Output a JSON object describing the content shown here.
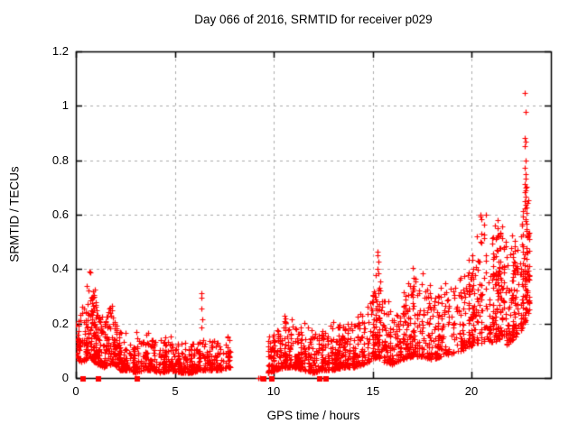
{
  "title": "Day 066 of 2016, SRMTID for receiver p029",
  "x_axis": {
    "label": "GPS time / hours",
    "min": 0,
    "max": 24,
    "ticks": [
      {
        "v": 0,
        "label": "0"
      },
      {
        "v": 5,
        "label": "5"
      },
      {
        "v": 10,
        "label": "10"
      },
      {
        "v": 15,
        "label": "15"
      },
      {
        "v": 20,
        "label": "20"
      }
    ]
  },
  "y_axis": {
    "label": "SRMTID / TECUs",
    "min": 0,
    "max": 1.2,
    "ticks": [
      {
        "v": 0,
        "label": "0"
      },
      {
        "v": 0.2,
        "label": "0.2"
      },
      {
        "v": 0.4,
        "label": "0.4"
      },
      {
        "v": 0.6,
        "label": "0.6"
      },
      {
        "v": 0.8,
        "label": "0.8"
      },
      {
        "v": 1,
        "label": "1"
      },
      {
        "v": 1.2,
        "label": "1.2"
      }
    ]
  },
  "colors": {
    "points": "#ff0000",
    "grid": "#ababab",
    "axis": "#000000",
    "background": "#ffffff",
    "text": "#000000"
  },
  "chart_data": {
    "type": "scatter",
    "marker": "plus",
    "series_name": "SRMTID",
    "series_color": "#ff0000",
    "title": "Day 066 of 2016, SRMTID for receiver p029",
    "xlabel": "GPS time / hours",
    "ylabel": "SRMTID / TECUs",
    "xlim": [
      0,
      24
    ],
    "ylim": [
      0,
      1.2
    ],
    "grid": true,
    "grid_style": "dashed",
    "legend": false,
    "time_coverage_hours": [
      [
        0,
        7.8
      ],
      [
        9.7,
        23.0
      ]
    ],
    "max_value": 1.05,
    "max_value_time": 22.7,
    "envelope": [
      [
        0.0,
        0.08,
        0.2
      ],
      [
        0.3,
        0.05,
        0.24
      ],
      [
        0.55,
        0.07,
        0.32
      ],
      [
        0.7,
        0.08,
        0.39
      ],
      [
        0.9,
        0.06,
        0.33
      ],
      [
        1.1,
        0.05,
        0.24
      ],
      [
        1.4,
        0.04,
        0.2
      ],
      [
        1.7,
        0.05,
        0.29
      ],
      [
        1.95,
        0.05,
        0.26
      ],
      [
        2.2,
        0.03,
        0.19
      ],
      [
        2.6,
        0.03,
        0.16
      ],
      [
        3.0,
        0.02,
        0.15
      ],
      [
        3.4,
        0.03,
        0.18
      ],
      [
        3.8,
        0.03,
        0.14
      ],
      [
        4.3,
        0.02,
        0.13
      ],
      [
        4.8,
        0.03,
        0.15
      ],
      [
        5.3,
        0.02,
        0.12
      ],
      [
        5.8,
        0.02,
        0.12
      ],
      [
        6.3,
        0.03,
        0.14
      ],
      [
        6.8,
        0.03,
        0.13
      ],
      [
        7.3,
        0.03,
        0.15
      ],
      [
        7.8,
        0.04,
        0.18
      ],
      [
        9.7,
        0.02,
        0.14
      ],
      [
        10.1,
        0.03,
        0.17
      ],
      [
        10.5,
        0.04,
        0.22
      ],
      [
        11.0,
        0.04,
        0.2
      ],
      [
        11.5,
        0.03,
        0.19
      ],
      [
        12.0,
        0.02,
        0.15
      ],
      [
        12.5,
        0.03,
        0.16
      ],
      [
        13.0,
        0.03,
        0.19
      ],
      [
        13.5,
        0.04,
        0.18
      ],
      [
        14.0,
        0.04,
        0.2
      ],
      [
        14.5,
        0.05,
        0.24
      ],
      [
        15.0,
        0.07,
        0.3
      ],
      [
        15.25,
        0.08,
        0.43
      ],
      [
        15.5,
        0.06,
        0.28
      ],
      [
        16.0,
        0.05,
        0.24
      ],
      [
        16.5,
        0.07,
        0.28
      ],
      [
        17.0,
        0.08,
        0.37
      ],
      [
        17.4,
        0.08,
        0.38
      ],
      [
        18.0,
        0.07,
        0.3
      ],
      [
        18.5,
        0.08,
        0.32
      ],
      [
        19.0,
        0.09,
        0.35
      ],
      [
        19.5,
        0.1,
        0.36
      ],
      [
        20.0,
        0.12,
        0.42
      ],
      [
        20.5,
        0.13,
        0.58
      ],
      [
        21.0,
        0.13,
        0.52
      ],
      [
        21.4,
        0.14,
        0.55
      ],
      [
        21.8,
        0.12,
        0.46
      ],
      [
        22.2,
        0.15,
        0.5
      ],
      [
        22.55,
        0.18,
        0.58
      ],
      [
        22.75,
        0.22,
        0.66
      ],
      [
        22.95,
        0.25,
        0.62
      ]
    ],
    "segments": [
      {
        "t0": 0.0,
        "t1": 0.35,
        "n": 40,
        "p": 1.8
      },
      {
        "t0": 0.35,
        "t1": 1.2,
        "n": 160,
        "p": 1.9
      },
      {
        "t0": 1.2,
        "t1": 2.2,
        "n": 150,
        "p": 2.0
      },
      {
        "t0": 2.2,
        "t1": 7.8,
        "n": 620,
        "p": 2.3
      },
      {
        "t0": 9.7,
        "t1": 12.2,
        "n": 330,
        "p": 2.2
      },
      {
        "t0": 12.2,
        "t1": 14.8,
        "n": 330,
        "p": 2.2
      },
      {
        "t0": 14.8,
        "t1": 15.6,
        "n": 120,
        "p": 1.8
      },
      {
        "t0": 15.6,
        "t1": 19.5,
        "n": 450,
        "p": 2.0
      },
      {
        "t0": 19.5,
        "t1": 22.55,
        "n": 430,
        "p": 1.7
      },
      {
        "t0": 22.55,
        "t1": 22.95,
        "n": 95,
        "p": 1.5
      }
    ],
    "outliers": [
      [
        6.33,
        0.31
      ],
      [
        6.36,
        0.295
      ],
      [
        6.35,
        0.255
      ],
      [
        6.38,
        0.215
      ],
      [
        6.33,
        0.185
      ],
      [
        15.22,
        0.465
      ],
      [
        15.25,
        0.45
      ],
      [
        15.24,
        0.4
      ],
      [
        15.28,
        0.385
      ],
      [
        20.45,
        0.6
      ],
      [
        20.5,
        0.585
      ],
      [
        21.3,
        0.55
      ],
      [
        22.68,
        1.047
      ],
      [
        22.7,
        0.978
      ],
      [
        22.66,
        0.882
      ],
      [
        22.72,
        0.868
      ],
      [
        22.69,
        0.853
      ],
      [
        22.71,
        0.8
      ],
      [
        22.67,
        0.772
      ],
      [
        22.73,
        0.748
      ],
      [
        22.7,
        0.731
      ],
      [
        22.68,
        0.712
      ],
      [
        22.74,
        0.699
      ],
      [
        22.66,
        0.682
      ],
      [
        22.71,
        0.667
      ],
      [
        22.69,
        0.65
      ],
      [
        22.72,
        0.638
      ],
      [
        22.67,
        0.622
      ],
      [
        22.75,
        0.607
      ],
      [
        9.22,
        0.0
      ],
      [
        9.3,
        0.0
      ]
    ],
    "zero_value_times": [
      0.35,
      1.15,
      3.1,
      9.5,
      9.9,
      12.3,
      12.65
    ],
    "seed": 7
  }
}
